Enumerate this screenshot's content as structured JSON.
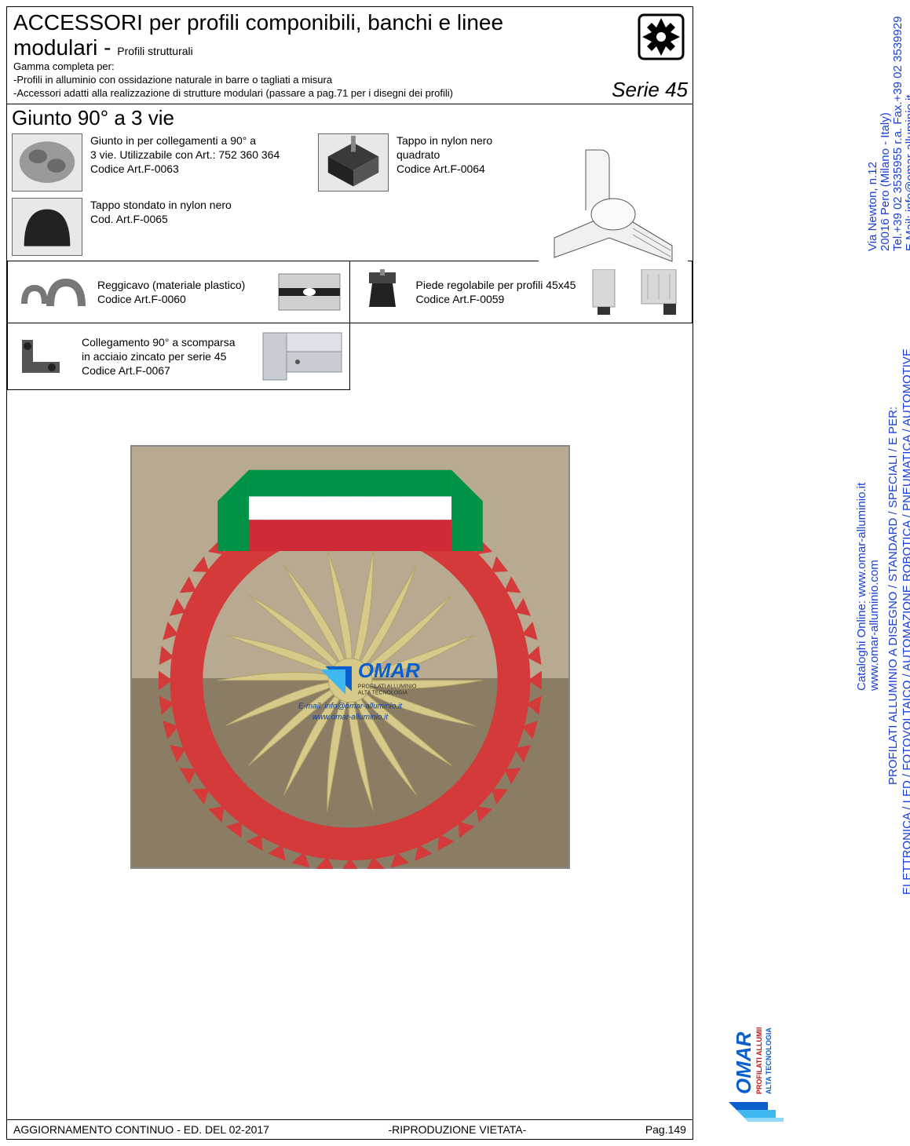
{
  "header": {
    "title_line1": "ACCESSORI per profili componibili, banchi e linee",
    "title_line2": "modulari - ",
    "subtitle": "Profili strutturali",
    "gamma": "Gamma completa per:",
    "bullet1": "-Profili in alluminio con ossidazione naturale in barre o tagliati a misura",
    "bullet2": "-Accessori adatti alla realizzazione di strutture modulari (passare a pag.71 per i disegni dei profili)",
    "serie": "Serie 45"
  },
  "section_joint": {
    "title": "Giunto 90° a 3 vie",
    "item1_l1": "Giunto in per collegamenti a 90° a",
    "item1_l2": "3 vie. Utilizzabile con Art.: 752 360 364",
    "item1_l3": "Codice Art.F-0063",
    "item2_l1": "Tappo in nylon nero",
    "item2_l2": "quadrato",
    "item2_l3": "Codice Art.F-0064",
    "item3_l1": "Tappo stondato in nylon nero",
    "item3_l2": "Cod. Art.F-0065"
  },
  "cards": {
    "c1_l1": "Reggicavo (materiale plastico)",
    "c1_l2": "Codice Art.F-0060",
    "c2_l1": "Piede regolabile per profili 45x45",
    "c2_l2": "Codice Art.F-0059",
    "c3_l1": "Collegamento 90° a scomparsa",
    "c3_l2": "in acciaio zincato per serie 45",
    "c3_l3": "Codice Art.F-0067"
  },
  "promo": {
    "brand": "OMAR",
    "brand_sub1": "PROFILATI ALLUMINIO",
    "brand_sub2": "ALTA TECNOLOGIA",
    "email": "E-mail: info@omar-alluminio.it",
    "web": "www.omar-alluminio.it",
    "flag_colors": [
      "#009246",
      "#ffffff",
      "#ce2b37"
    ],
    "ring_color": "#d43a3a"
  },
  "sidebar": {
    "addr1": "Via Newton, n.12",
    "addr2": "20016 Pero (Milano - Italy)",
    "addr3": "Tel.+39 02 3535955 r.a. Fax.+39 02 3539929",
    "addr4": "E.Mail: info@omar-alluminio.it",
    "cat1": "Cataloghi Online: www.omar-alluminio.it",
    "cat2": "www.omar-alluminio.com",
    "line1": "PROFILATI ALLUMINIO A DISEGNO / STANDARD / SPECIALI / E PER:",
    "line2": "ELETTRONICA / LED / FOTOVOLTAICO / AUTOMAZIONE ROBOTICA / PNEUMATICA / AUTOMOTIVE",
    "logo_name": "OMAR s.r.l.",
    "logo_sub1": "PROFILATI ALLUMINIO",
    "logo_sub2": "ALTA TECNOLOGIA"
  },
  "footer": {
    "left": "AGGIORNAMENTO CONTINUO - ED. DEL 02-2017",
    "center": "-RIPRODUZIONE VIETATA-",
    "right": "Pag.149"
  },
  "colors": {
    "blue_text": "#1a3fd6",
    "logo_blue": "#0a5fcf",
    "logo_cyan": "#3fb8f0"
  }
}
